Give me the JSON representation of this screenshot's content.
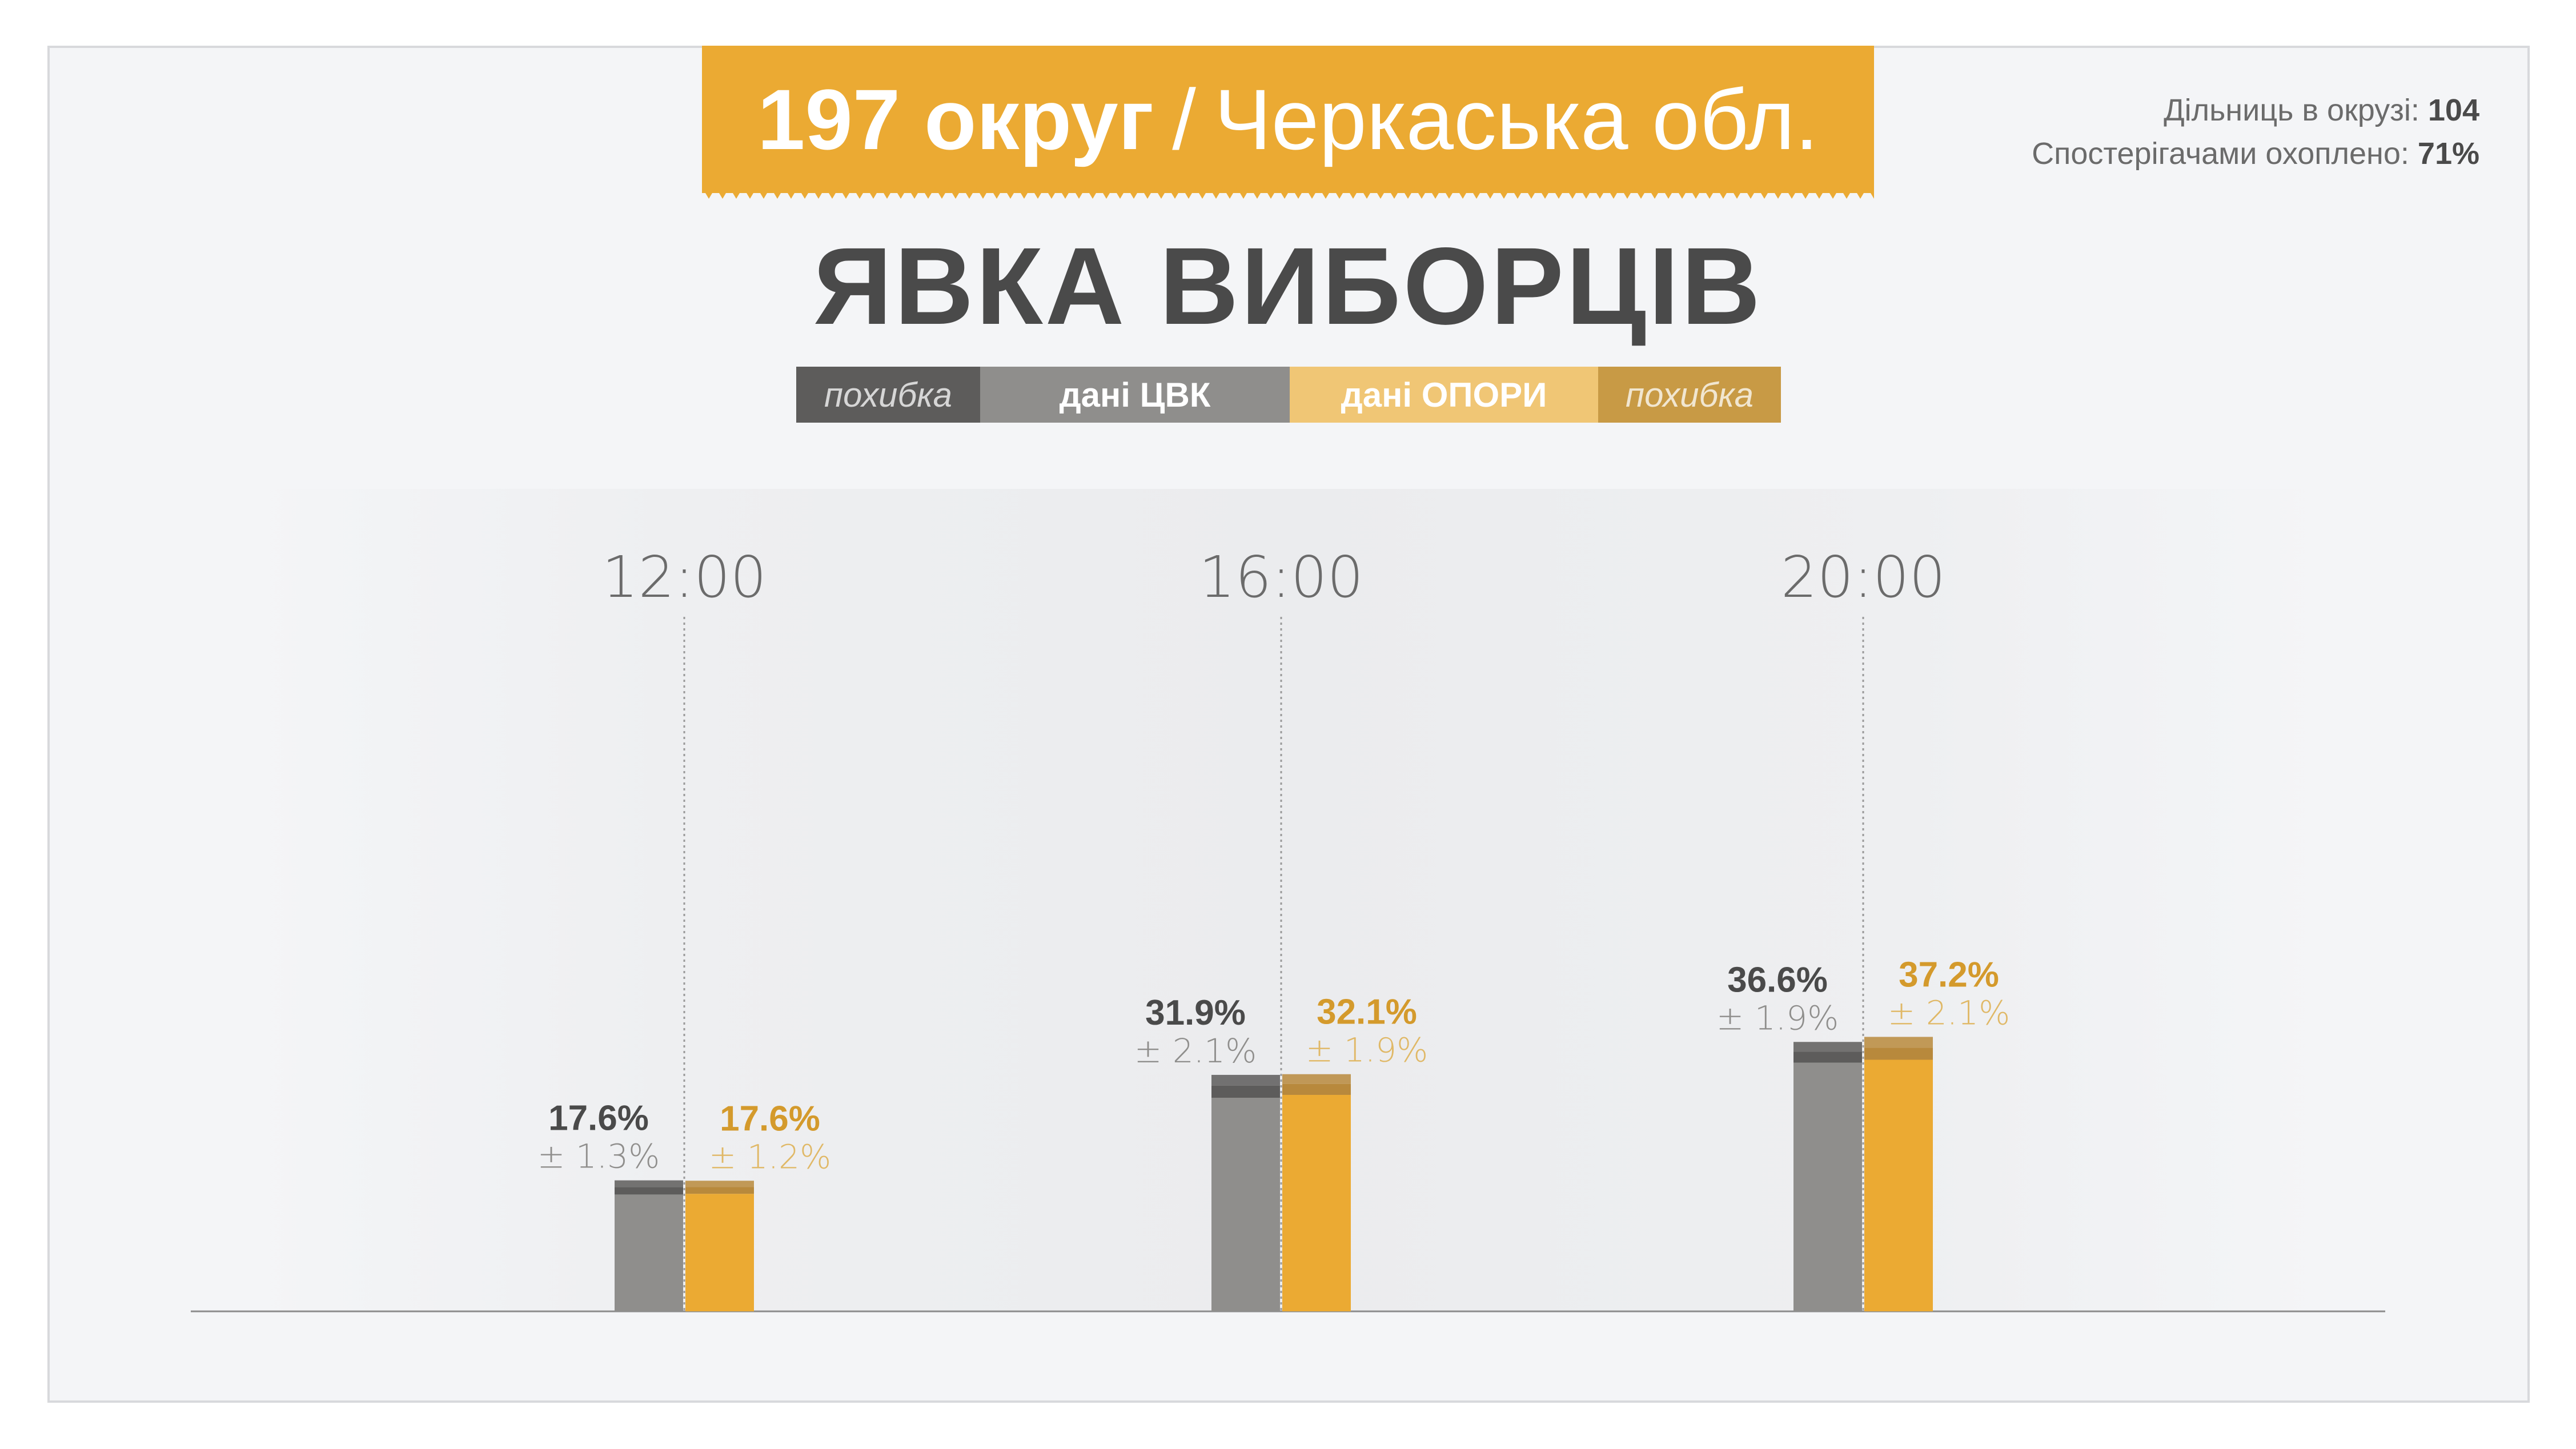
{
  "header": {
    "district": "197 округ",
    "separator": "/",
    "region": "Черкаська обл."
  },
  "stats": {
    "precincts_label": "Дільниць в окрузі:",
    "precincts_value": "104",
    "coverage_label": "Спостерігачами охоплено:",
    "coverage_value": "71%"
  },
  "title": "ЯВКА ВИБОРЦІВ",
  "legend": {
    "error_left": "похибка",
    "cvk": "дані ЦВК",
    "opora": "дані ОПОРИ",
    "error_right": "похибка"
  },
  "colors": {
    "banner": "#ebaa33",
    "cvk": "#8f8e8c",
    "cvk_error": "#5d5c5b",
    "opora": "#ebaa33",
    "opora_error": "#b8893c",
    "legend_cvk_error": "#5d5c5b",
    "legend_opora": "#f0c675",
    "legend_opora_error": "#c89a45"
  },
  "chart_data": {
    "type": "bar",
    "categories": [
      "12:00",
      "16:00",
      "20:00"
    ],
    "unit": "%",
    "series": [
      {
        "name": "дані ЦВК",
        "values": [
          17.6,
          31.9,
          36.6
        ],
        "labels": [
          "17.6%",
          "31.9%",
          "36.6%"
        ],
        "errors": [
          1.3,
          2.1,
          1.9
        ],
        "error_labels": [
          "± 1.3%",
          "± 2.1%",
          "± 1.9%"
        ]
      },
      {
        "name": "дані ОПОРИ",
        "values": [
          17.6,
          32.1,
          37.2
        ],
        "labels": [
          "17.6%",
          "32.1%",
          "37.2%"
        ],
        "errors": [
          1.2,
          1.9,
          2.1
        ],
        "error_labels": [
          "± 1.2%",
          "± 1.9%",
          "± 2.1%"
        ]
      }
    ],
    "ylim": [
      0,
      100
    ],
    "grid": false
  }
}
